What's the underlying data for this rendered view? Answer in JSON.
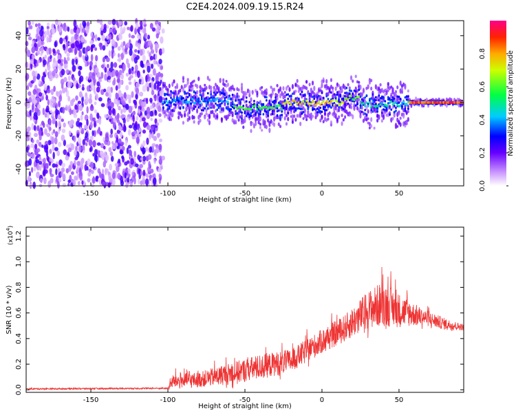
{
  "title": "C2E4.2024.009.19.15.R24",
  "chart_data": [
    {
      "type": "heatmap",
      "xlabel": "Height of straight line (km)",
      "ylabel": "Frequency (Hz)",
      "xlim": [
        -192,
        92
      ],
      "ylim": [
        -50,
        49
      ],
      "xticks": [
        -150,
        -100,
        -50,
        0,
        50
      ],
      "yticks": [
        -40,
        -20,
        0,
        20,
        40
      ],
      "colorbar": {
        "label": "Normalized spectral amplitude",
        "ticks": [
          "0.0",
          "0.2",
          "0.4",
          "0.6",
          "0.8"
        ],
        "range": [
          0,
          1
        ],
        "colormap": "white-purple-blue-cyan-green-yellow-orange-red-magenta"
      },
      "regions": [
        {
          "x_start": -192,
          "x_end": -103,
          "description_key": "broadband-noise",
          "amplitude_range": [
            0.02,
            0.15
          ]
        },
        {
          "x_start": -103,
          "x_end": -57,
          "center_freq": 1,
          "amplitude_peak": 0.45
        },
        {
          "x_start": -57,
          "x_end": -25,
          "center_freq": -3,
          "amplitude_peak": 0.65
        },
        {
          "x_start": -25,
          "x_end": 15,
          "center_freq": 0,
          "amplitude_peak": 0.8
        },
        {
          "x_start": 15,
          "x_end": 25,
          "center_freq": 3,
          "amplitude_peak": 0.7
        },
        {
          "x_start": 25,
          "x_end": 57,
          "center_freq": -1,
          "amplitude_peak": 0.55
        },
        {
          "x_start": 57,
          "x_end": 92,
          "center_freq": 0,
          "amplitude_peak": 0.95
        }
      ]
    },
    {
      "type": "line",
      "xlabel": "Height of straight line (km)",
      "ylabel": "SNR (10 * v/v)",
      "ylabel_multiplier": "(x10",
      "ylabel_multiplier_exp": "4",
      "ylabel_multiplier_close": ")",
      "xlim": [
        -192,
        92
      ],
      "ylim": [
        -0.02,
        1.27
      ],
      "xticks": [
        -150,
        -100,
        -50,
        0,
        50
      ],
      "yticks": [
        "0.0",
        "0.2",
        "0.4",
        "0.6",
        "0.8",
        "1.0",
        "1.2"
      ],
      "color": "#ee3333",
      "envelope": [
        {
          "x": -192,
          "base": 0.005,
          "amp": 0.02
        },
        {
          "x": -100,
          "base": 0.01,
          "amp": 0.02
        },
        {
          "x": -97,
          "base": 0.05,
          "amp": 0.18
        },
        {
          "x": -80,
          "base": 0.06,
          "amp": 0.2
        },
        {
          "x": -60,
          "base": 0.1,
          "amp": 0.28
        },
        {
          "x": -40,
          "base": 0.15,
          "amp": 0.33
        },
        {
          "x": -20,
          "base": 0.2,
          "amp": 0.3
        },
        {
          "x": 0,
          "base": 0.35,
          "amp": 0.32
        },
        {
          "x": 15,
          "base": 0.45,
          "amp": 0.35
        },
        {
          "x": 30,
          "base": 0.58,
          "amp": 0.5
        },
        {
          "x": 40,
          "base": 0.62,
          "amp": 0.6
        },
        {
          "x": 50,
          "base": 0.58,
          "amp": 0.45
        },
        {
          "x": 65,
          "base": 0.55,
          "amp": 0.22
        },
        {
          "x": 80,
          "base": 0.5,
          "amp": 0.15
        },
        {
          "x": 92,
          "base": 0.48,
          "amp": 0.08
        }
      ]
    }
  ]
}
